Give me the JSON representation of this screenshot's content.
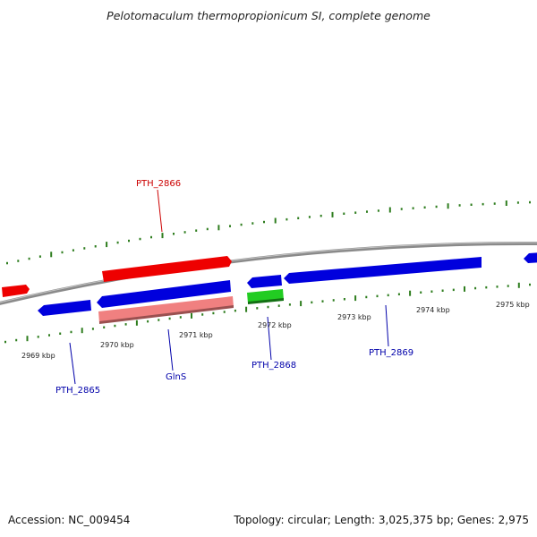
{
  "title": "Pelotomaculum thermopropionicum SI, complete genome",
  "footer": {
    "accession": "Accession: NC_009454",
    "summary": "Topology: circular; Length: 3,025,375 bp; Genes: 2,975"
  },
  "scale_labels": [
    "2969 kbp",
    "2970 kbp",
    "2971 kbp",
    "2972 kbp",
    "2973 kbp",
    "2974 kbp",
    "2975 kbp"
  ],
  "gene_labels": {
    "pth_2866": "PTH_2866",
    "pth_2865": "PTH_2865",
    "glns": "GlnS",
    "pth_2868": "PTH_2868",
    "pth_2869": "PTH_2869"
  },
  "colors": {
    "backbone": "#8a8a8a",
    "tick": "#2e7d1e",
    "forward_gene": "#ee0000",
    "reverse_gene": "#0000dd",
    "rna_gene": "#f08080",
    "highlight_gene": "#22cc22",
    "label_forward": "#cc0000",
    "label_reverse": "#0000aa"
  }
}
